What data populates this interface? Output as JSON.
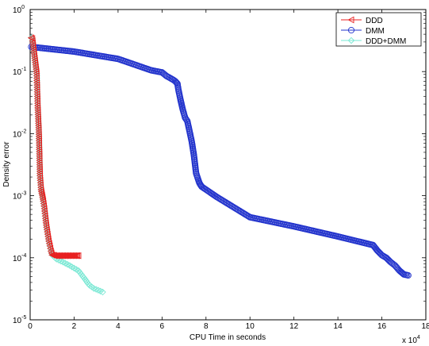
{
  "chart_data": {
    "type": "line",
    "xlabel": "CPU Time in seconds",
    "ylabel": "Density error",
    "x_multiplier_label": "x 10",
    "x_multiplier_exp": "4",
    "xlim": [
      0,
      18
    ],
    "ylim_exp": [
      -5,
      0
    ],
    "yscale": "log",
    "x_ticks": [
      "0",
      "2",
      "4",
      "6",
      "8",
      "10",
      "12",
      "14",
      "16",
      "18"
    ],
    "y_ticks": [
      {
        "exp": -5,
        "base": "10",
        "sup": "-5"
      },
      {
        "exp": -4,
        "base": "10",
        "sup": "-4"
      },
      {
        "exp": -3,
        "base": "10",
        "sup": "-3"
      },
      {
        "exp": -2,
        "base": "10",
        "sup": "-2"
      },
      {
        "exp": -1,
        "base": "10",
        "sup": "-1"
      },
      {
        "exp": 0,
        "base": "10",
        "sup": "0"
      }
    ],
    "legend_position": "top-right",
    "series": [
      {
        "name": "DDD",
        "color": "#e82020",
        "marker": "triangle-left",
        "x": [
          0.05,
          0.1,
          0.3,
          0.35,
          0.4,
          0.45,
          0.5,
          0.55,
          0.6,
          0.65,
          0.7,
          0.75,
          0.8,
          0.85,
          0.9,
          0.95,
          1.0,
          1.05,
          1.1,
          1.15,
          1.2,
          1.25,
          1.3,
          1.35,
          1.4,
          1.45,
          1.5,
          1.55,
          1.6,
          1.65,
          1.7,
          1.75,
          1.8,
          1.85,
          1.9,
          1.95,
          2.0,
          2.05,
          2.1,
          2.15,
          2.2
        ],
        "y": [
          0.35,
          0.34,
          0.093,
          0.026,
          0.0106,
          0.0021,
          0.00125,
          0.00102,
          0.00082,
          0.00062,
          0.00043,
          0.00031,
          0.00024,
          0.000185,
          0.000155,
          0.000128,
          0.000111,
          0.00011,
          0.000109,
          0.000108,
          0.000108,
          0.000108,
          0.000108,
          0.000108,
          0.000108,
          0.000108,
          0.000108,
          0.000108,
          0.000108,
          0.000108,
          0.000108,
          0.000108,
          0.000108,
          0.000108,
          0.000108,
          0.000108,
          0.000108,
          0.000108,
          0.000108,
          0.000108,
          0.000108
        ]
      },
      {
        "name": "DMM",
        "color": "#2233cc",
        "marker": "circle",
        "x": [
          0.05,
          2.0,
          4.0,
          5.5,
          6.0,
          6.2,
          6.5,
          6.6,
          6.7,
          6.75,
          6.85,
          6.95,
          7.05,
          7.15,
          7.25,
          7.35,
          7.45,
          7.55,
          7.65,
          7.7,
          7.75,
          7.8,
          8.5,
          10.0,
          12.0,
          14.0,
          15.6,
          15.8,
          16.0,
          16.2,
          16.4,
          16.6,
          16.8,
          17.0,
          17.2
        ],
        "y": [
          0.25,
          0.21,
          0.16,
          0.105,
          0.097,
          0.085,
          0.074,
          0.07,
          0.064,
          0.05,
          0.034,
          0.024,
          0.018,
          0.016,
          0.011,
          0.0075,
          0.0045,
          0.0023,
          0.0018,
          0.0016,
          0.0015,
          0.0014,
          0.00095,
          0.00045,
          0.00032,
          0.00022,
          0.00016,
          0.00013,
          0.00011,
          0.0001,
          8.5e-05,
          7.5e-05,
          6.2e-05,
          5.4e-05,
          5.2e-05
        ]
      },
      {
        "name": "DDD+DMM",
        "color": "#7ae8d4",
        "marker": "diamond",
        "x": [
          0.05,
          0.1,
          0.3,
          0.35,
          0.4,
          0.45,
          0.5,
          0.55,
          0.6,
          0.65,
          0.7,
          0.75,
          0.8,
          0.85,
          0.9,
          0.95,
          1.0,
          1.2,
          1.5,
          1.8,
          2.0,
          2.2,
          2.4,
          2.5,
          2.6,
          2.7,
          2.8,
          2.9,
          3.0,
          3.1,
          3.2,
          3.3
        ],
        "y": [
          0.35,
          0.34,
          0.093,
          0.026,
          0.0106,
          0.0021,
          0.00125,
          0.00102,
          0.00082,
          0.00062,
          0.00043,
          0.00031,
          0.00024,
          0.000185,
          0.000155,
          0.000128,
          0.000111,
          9.5e-05,
          8.5e-05,
          7.5e-05,
          6.8e-05,
          6.2e-05,
          5e-05,
          4.5e-05,
          4e-05,
          3.6e-05,
          3.4e-05,
          3.2e-05,
          3.1e-05,
          3e-05,
          2.9e-05,
          2.8e-05
        ]
      }
    ]
  }
}
